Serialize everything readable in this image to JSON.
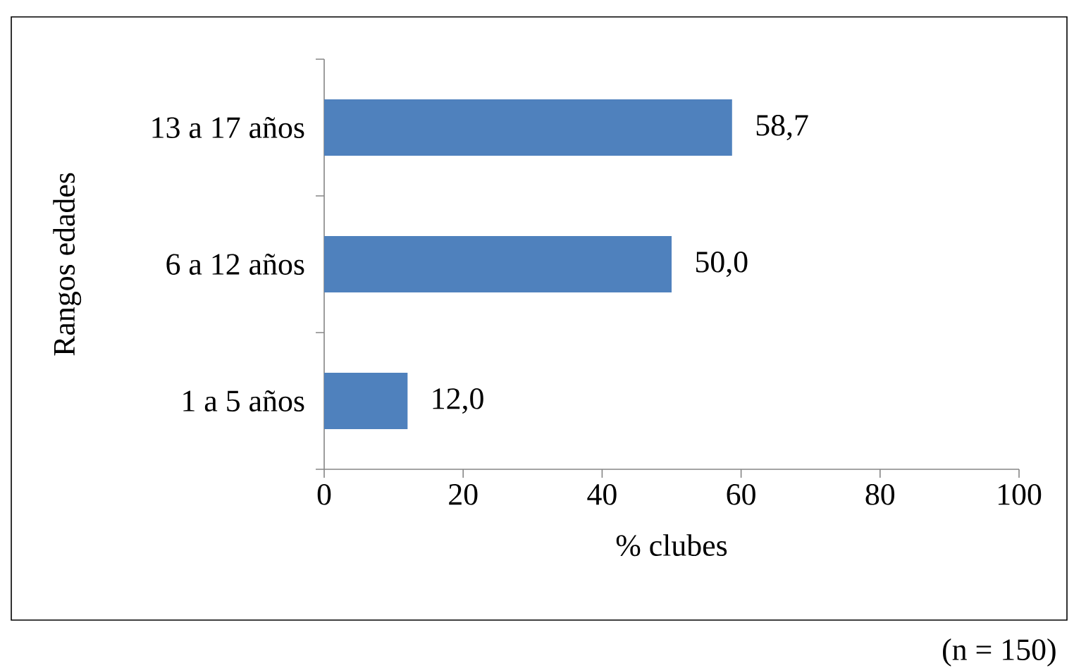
{
  "chart_data": {
    "type": "bar",
    "orientation": "horizontal",
    "xlabel": "% clubes",
    "ylabel": "Rangos edades",
    "categories": [
      "13 a 17 años",
      "6 a 12 años",
      "1 a 5 años"
    ],
    "values": [
      58.7,
      50.0,
      12.0
    ],
    "value_labels": [
      "58,7",
      "50,0",
      "12,0"
    ],
    "color": "#4f81bd",
    "xlim": [
      0,
      100
    ],
    "xticks": [
      0,
      20,
      40,
      60,
      80,
      100
    ],
    "annotations": [
      "(n = 150)"
    ]
  }
}
